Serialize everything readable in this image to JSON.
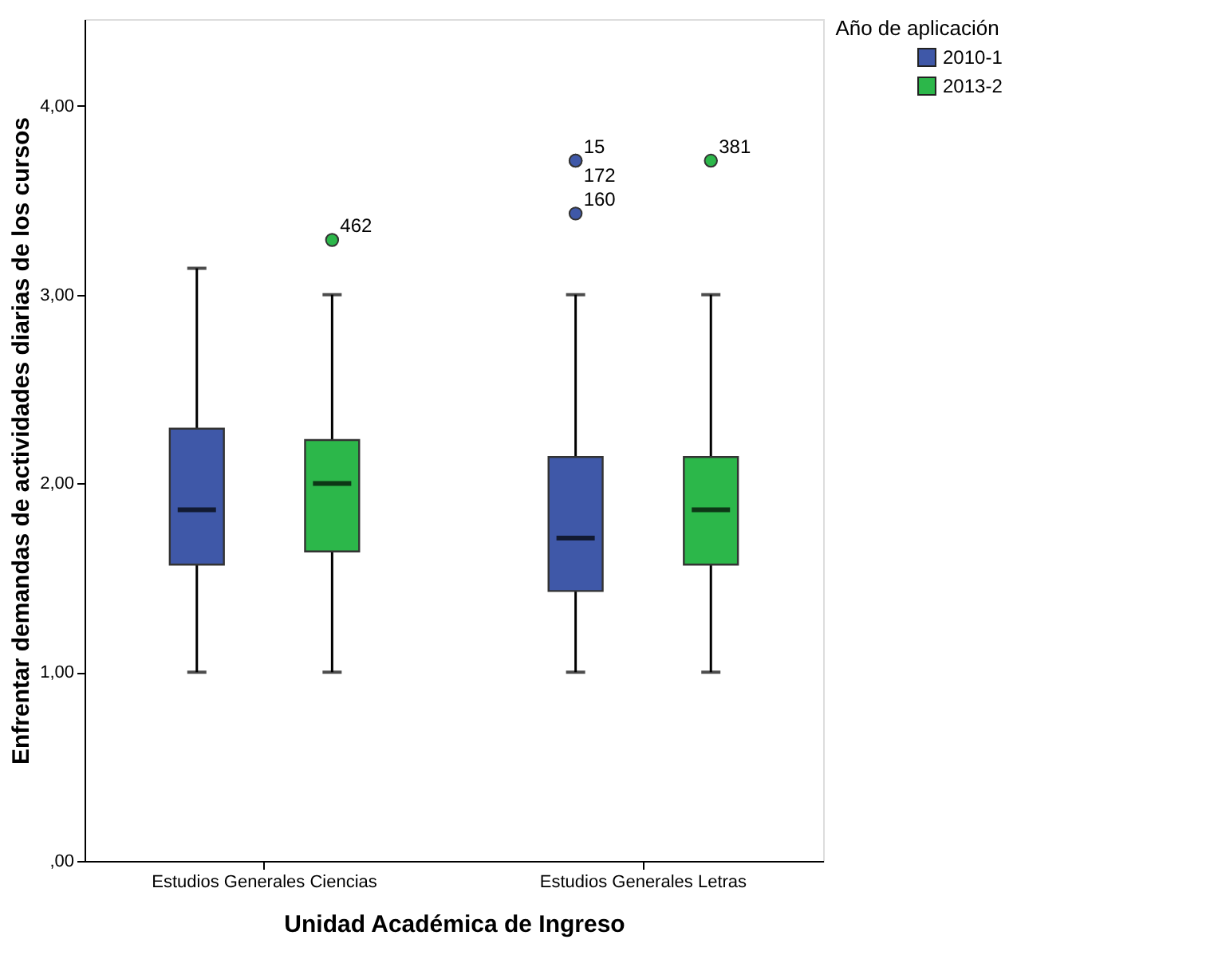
{
  "chart_data": {
    "type": "box",
    "xlabel": "Unidad Académica de Ingreso",
    "ylabel": "Enfrentar demandas de actividades diarias de los cursos",
    "legend_title": "Año de aplicación",
    "categories": [
      "Estudios Generales Ciencias",
      "Estudios Generales Letras"
    ],
    "series": [
      {
        "name": "2010-1",
        "color": "#3f58a8",
        "boxes": [
          {
            "low": 1.0,
            "q1": 1.57,
            "median": 1.86,
            "q3": 2.29,
            "high": 3.14
          },
          {
            "low": 1.0,
            "q1": 1.43,
            "median": 1.71,
            "q3": 2.14,
            "high": 3.0,
            "outliers": [
              3.71,
              3.71,
              3.43
            ]
          }
        ]
      },
      {
        "name": "2013-2",
        "color": "#2cb74a",
        "boxes": [
          {
            "low": 1.0,
            "q1": 1.64,
            "median": 2.0,
            "q3": 2.23,
            "high": 3.0,
            "outliers": [
              3.29
            ]
          },
          {
            "low": 1.0,
            "q1": 1.57,
            "median": 1.86,
            "q3": 2.14,
            "high": 3.0,
            "outliers": [
              3.71
            ]
          }
        ]
      }
    ],
    "annotations": [
      "462",
      "15",
      "172",
      "160",
      "381"
    ],
    "ylim": [
      0,
      4.46
    ],
    "yticks": [
      {
        "value": 0,
        "label": ",00"
      },
      {
        "value": 1,
        "label": "1,00"
      },
      {
        "value": 2,
        "label": "2,00"
      },
      {
        "value": 3,
        "label": "3,00"
      },
      {
        "value": 4,
        "label": "4,00"
      }
    ],
    "grid": false,
    "legend": "top right"
  }
}
